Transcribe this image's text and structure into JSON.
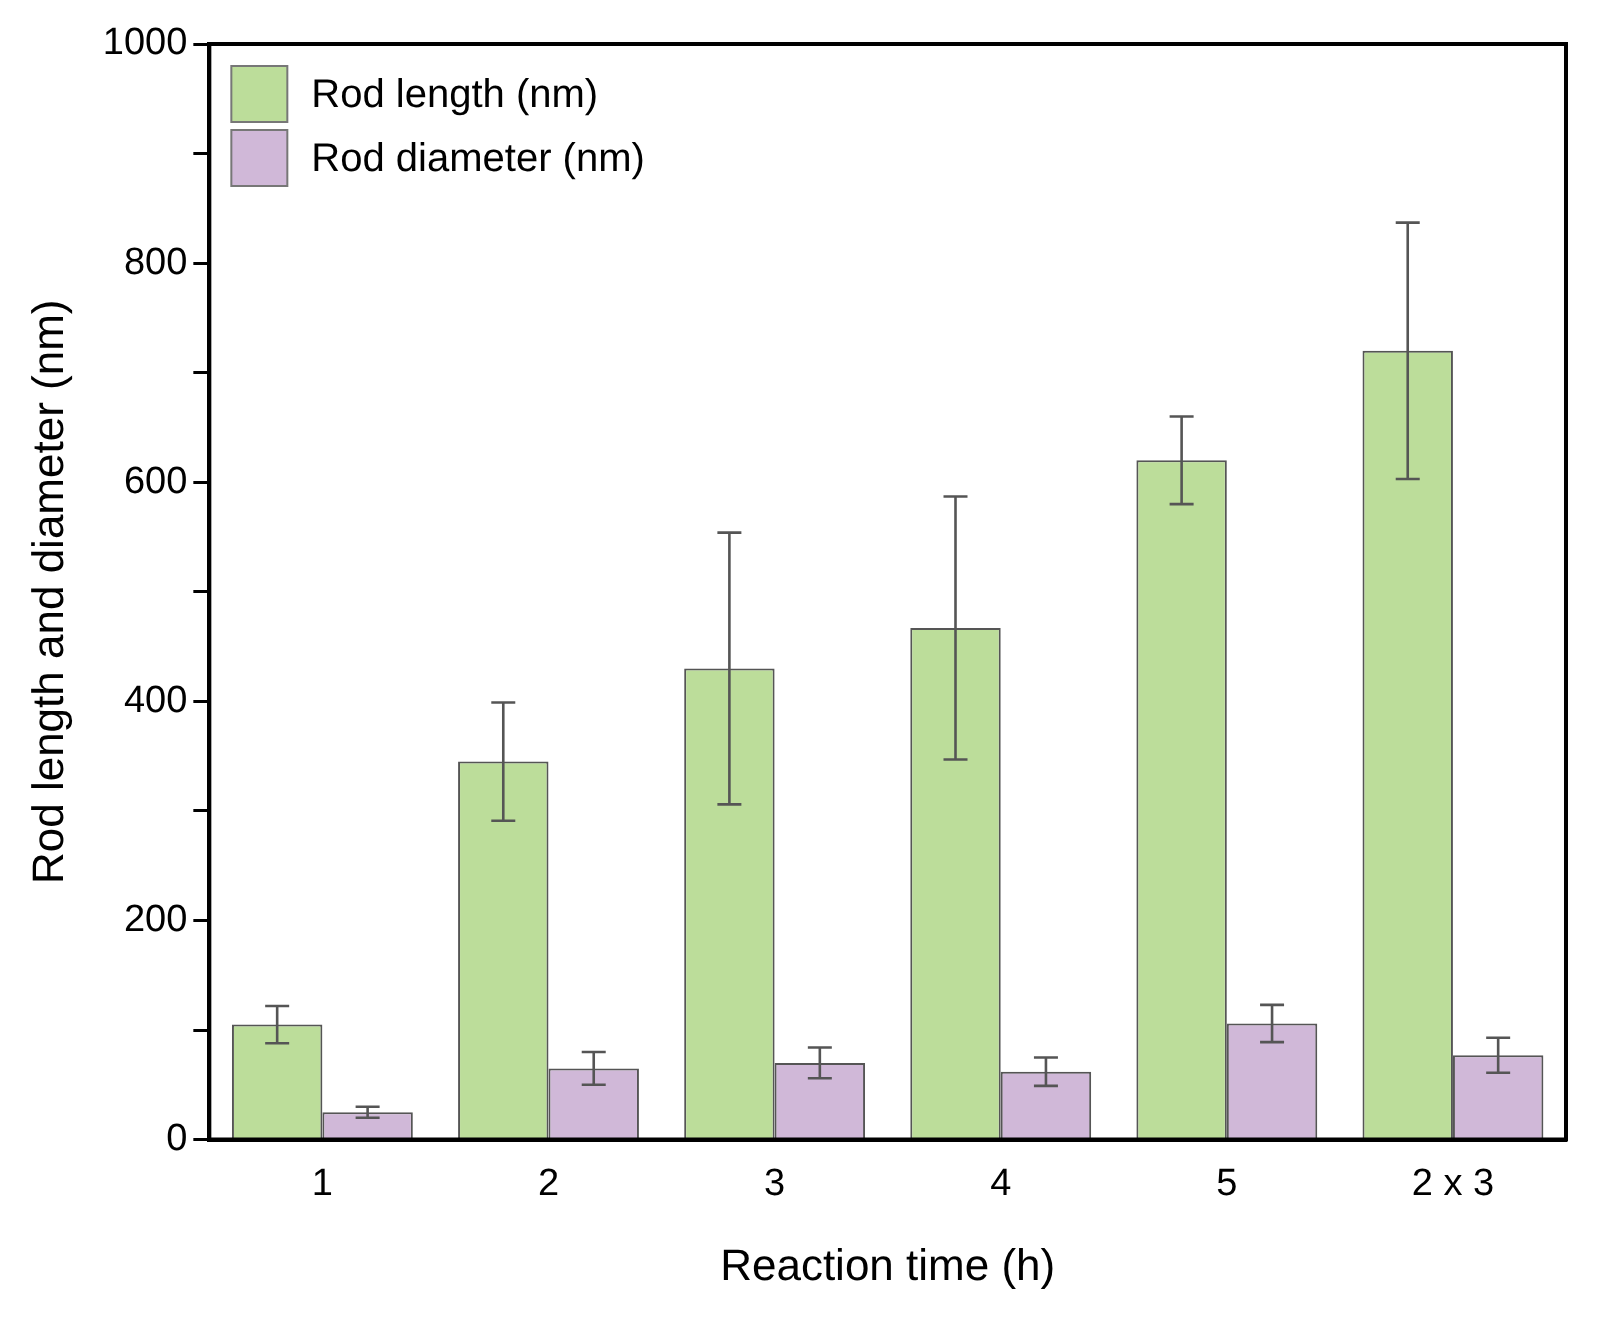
{
  "chart_data": {
    "type": "bar",
    "xlabel": "Reaction time (h)",
    "ylabel": "Rod length and diameter (nm)",
    "categories": [
      "1",
      "2",
      "3",
      "4",
      "5",
      "2 x 3"
    ],
    "series": [
      {
        "name": "Rod length (nm)",
        "color": "#bcdd9a",
        "values": [
          105,
          345,
          430,
          467,
          620,
          720
        ],
        "errors": [
          17,
          54,
          124,
          120,
          40,
          117
        ]
      },
      {
        "name": "Rod diameter (nm)",
        "color": "#d0b8d8",
        "values": [
          25,
          65,
          70,
          62,
          106,
          77
        ],
        "errors": [
          5,
          15,
          14,
          13,
          17,
          16
        ]
      }
    ],
    "ylim": [
      0,
      1000
    ],
    "yticks": [
      0,
      {
        "value": 100,
        "label": null
      },
      200,
      {
        "value": 300,
        "label": null
      },
      400,
      {
        "value": 500,
        "label": null
      },
      600,
      {
        "value": 700,
        "label": null
      },
      800,
      {
        "value": 900,
        "label": null
      },
      1000
    ],
    "legend": "top left"
  }
}
